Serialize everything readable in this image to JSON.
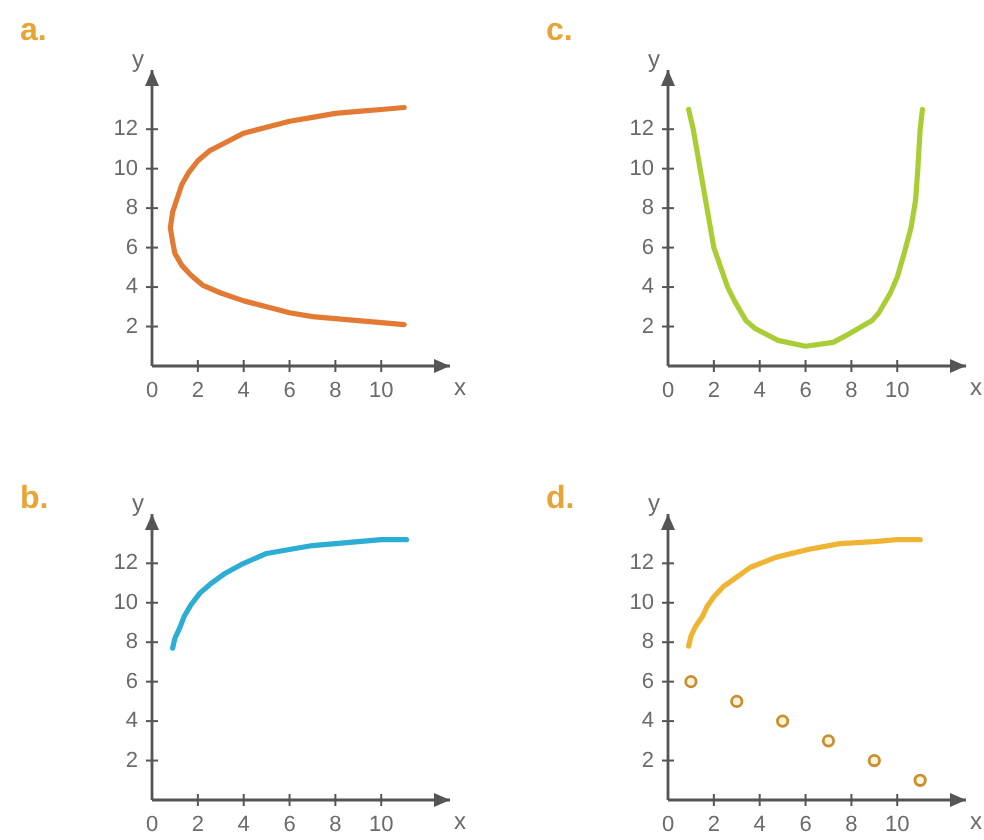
{
  "chart_data": [
    {
      "type": "line",
      "title": "a.",
      "xlabel": "x",
      "ylabel": "y",
      "x": [
        11,
        10,
        9,
        8,
        7,
        6,
        5,
        4,
        3,
        2.5,
        2,
        1.6,
        1.3,
        1.1,
        0.9,
        0.8,
        0.9,
        1,
        1.3,
        1.7,
        2.2,
        3,
        4,
        5,
        6,
        7,
        8,
        9,
        10,
        11
      ],
      "values": [
        13.1,
        13,
        12.9,
        12.8,
        12.6,
        12.4,
        12.1,
        11.8,
        11.2,
        10.9,
        10.4,
        9.8,
        9.2,
        8.5,
        7.8,
        7,
        6.3,
        5.7,
        5.1,
        4.6,
        4.1,
        3.7,
        3.3,
        3,
        2.7,
        2.5,
        2.4,
        2.3,
        2.2,
        2.1
      ],
      "color": "#e27a34",
      "xlim": [
        0,
        13
      ],
      "ylim": [
        0,
        15
      ],
      "xticks": [
        0,
        2,
        4,
        6,
        8,
        10
      ],
      "yticks": [
        2,
        4,
        6,
        8,
        10,
        12
      ]
    },
    {
      "type": "line",
      "title": "c.",
      "xlabel": "x",
      "ylabel": "y",
      "x": [
        0.9,
        1.1,
        1.4,
        1.7,
        2,
        2.3,
        2.6,
        2.9,
        3.4,
        3.8,
        4.8,
        6,
        7.2,
        7.7,
        8.9,
        9.2,
        9.7,
        10,
        10.3,
        10.6,
        10.8,
        10.9,
        11,
        11.1
      ],
      "values": [
        13,
        12,
        10,
        8,
        6,
        5,
        4,
        3.3,
        2.3,
        1.9,
        1.3,
        1,
        1.2,
        1.5,
        2.3,
        2.7,
        3.7,
        4.5,
        5.7,
        7,
        8.4,
        10,
        12,
        13
      ],
      "color": "#a9cd35",
      "xlim": [
        0,
        13
      ],
      "ylim": [
        0,
        15
      ],
      "xticks": [
        0,
        2,
        4,
        6,
        8,
        10
      ],
      "yticks": [
        2,
        4,
        6,
        8,
        10,
        12
      ]
    },
    {
      "type": "line",
      "title": "b.",
      "xlabel": "x",
      "ylabel": "y",
      "x": [
        0.9,
        1,
        1.2,
        1.4,
        1.7,
        2.1,
        2.6,
        3.2,
        4,
        5,
        6,
        7,
        8,
        9,
        10,
        11.1
      ],
      "values": [
        7.7,
        8.2,
        8.7,
        9.3,
        9.9,
        10.5,
        11,
        11.5,
        12,
        12.5,
        12.7,
        12.9,
        13,
        13.1,
        13.2,
        13.2
      ],
      "color": "#2cadd3",
      "xlim": [
        0,
        13
      ],
      "ylim": [
        0,
        14.5
      ],
      "xticks": [
        0,
        2,
        4,
        6,
        8,
        10
      ],
      "yticks": [
        2,
        4,
        6,
        8,
        10,
        12
      ]
    },
    {
      "type": "line",
      "title": "d.",
      "xlabel": "x",
      "ylabel": "y",
      "series": [
        {
          "type": "line",
          "x": [
            0.9,
            1,
            1.2,
            1.5,
            1.7,
            2,
            2.4,
            3,
            3.6,
            4.7,
            6.1,
            7.5,
            9,
            10,
            11
          ],
          "values": [
            7.8,
            8.3,
            8.8,
            9.3,
            9.8,
            10.3,
            10.8,
            11.3,
            11.8,
            12.3,
            12.7,
            13,
            13.1,
            13.2,
            13.2
          ],
          "color": "#f0b434"
        },
        {
          "type": "scatter",
          "x": [
            1,
            3,
            5,
            7,
            9,
            11
          ],
          "values": [
            6,
            5,
            4,
            3,
            2,
            1
          ],
          "color": "#c98f2e",
          "marker": "circle"
        }
      ],
      "xlim": [
        0,
        13
      ],
      "ylim": [
        0,
        14.5
      ],
      "xticks": [
        0,
        2,
        4,
        6,
        8,
        10
      ],
      "yticks": [
        2,
        4,
        6,
        8,
        10,
        12
      ]
    }
  ]
}
